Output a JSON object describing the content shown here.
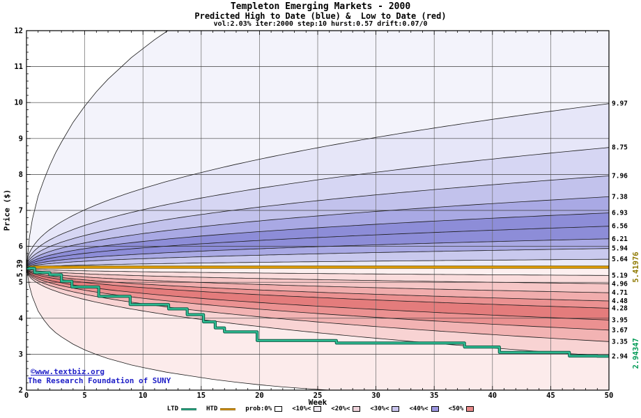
{
  "header": {
    "title": "Templeton Emerging Markets - 2000",
    "subtitle": "Predicted High to Date (blue) &  Low to Date (red)",
    "params": "vol:2.03% iter:2000 step:10 hurst:0.57 drift:0.07/0"
  },
  "watermark": {
    "link": "©www.textbiz.org",
    "org": "The Research Foundation of SUNY",
    "color": "#2121c8"
  },
  "legend": {
    "items": [
      {
        "label": "LTD",
        "type": "line",
        "color": "#2fbf95"
      },
      {
        "label": "HTD",
        "type": "line",
        "color": "#f5a800"
      },
      {
        "label": "prob:0%",
        "type": "box",
        "color": "#ffffff"
      },
      {
        "label": "<10%<",
        "type": "box",
        "color": "#f2ecf3"
      },
      {
        "label": "<20%<",
        "type": "box",
        "color": "#eed3db"
      },
      {
        "label": "<30%<",
        "type": "box",
        "color": "#cac5ee"
      },
      {
        "label": "<40%<",
        "type": "box",
        "color": "#9d97e1"
      },
      {
        "label": "<50%",
        "type": "box",
        "color": "#e98a8a"
      }
    ]
  },
  "chart_data": {
    "type": "area",
    "title": "Templeton Emerging Markets - 2000",
    "subtitle": "Predicted High to Date (blue) &  Low to Date (red)",
    "params_line": "vol:2.03% iter:2000 step:10 hurst:0.57 drift:0.07/0",
    "xlabel": "Week",
    "ylabel": "Price ($)",
    "xlim": [
      0,
      50
    ],
    "ylim": [
      2,
      12
    ],
    "xticks": [
      0,
      5,
      10,
      15,
      20,
      25,
      30,
      35,
      40,
      45,
      50
    ],
    "yticks": [
      2,
      3,
      4,
      5,
      6,
      7,
      8,
      9,
      10,
      11,
      12
    ],
    "grid": true,
    "legend_position": "bottom",
    "start_price": 5.39,
    "start_label": "5.39",
    "curve_exponent": 0.45,
    "high_percentile_ends": [
      9.97,
      8.75,
      7.96,
      7.38,
      6.93,
      6.56,
      6.21,
      5.94,
      5.64
    ],
    "low_percentile_ends": [
      5.19,
      4.96,
      4.71,
      4.48,
      4.28,
      3.95,
      3.67,
      3.35,
      2.94
    ],
    "band_colors_high": [
      "#f3f3fb",
      "#e6e6f8",
      "#d6d6f3",
      "#c2c2ec",
      "#a9a9e4",
      "#8d8dd8",
      "#8d8dd8",
      "#a9a9e4",
      "#c9c9ee",
      "#eaeaf9"
    ],
    "band_colors_low": [
      "#fdf0f0",
      "#fadcdc",
      "#f6c6c6",
      "#f1adad",
      "#eb9191",
      "#e47c7c",
      "#eb9191",
      "#f2b3b3",
      "#f8d3d3",
      "#fcebeb"
    ],
    "upper_envelope_points": [
      [
        0,
        5.39
      ],
      [
        0.25,
        6.25
      ],
      [
        0.5,
        6.75
      ],
      [
        1,
        7.4
      ],
      [
        1.5,
        7.85
      ],
      [
        2,
        8.25
      ],
      [
        2.5,
        8.6
      ],
      [
        3,
        8.9
      ],
      [
        4,
        9.45
      ],
      [
        5,
        9.9
      ],
      [
        6,
        10.3
      ],
      [
        7,
        10.65
      ],
      [
        8,
        10.95
      ],
      [
        9,
        11.25
      ],
      [
        10,
        11.5
      ],
      [
        11,
        11.75
      ],
      [
        12,
        11.97
      ],
      [
        13,
        12.18
      ],
      [
        14,
        12.4
      ],
      [
        16,
        12.75
      ],
      [
        20,
        13.3
      ],
      [
        25,
        13.85
      ],
      [
        30,
        14.3
      ],
      [
        35,
        14.7
      ],
      [
        40,
        15.0
      ],
      [
        45,
        15.3
      ],
      [
        50,
        15.6
      ]
    ],
    "lower_envelope_points": [
      [
        0,
        5.39
      ],
      [
        0.25,
        4.9
      ],
      [
        0.5,
        4.6
      ],
      [
        1,
        4.2
      ],
      [
        1.5,
        3.95
      ],
      [
        2,
        3.75
      ],
      [
        2.5,
        3.6
      ],
      [
        3,
        3.48
      ],
      [
        4,
        3.28
      ],
      [
        5,
        3.12
      ],
      [
        6,
        2.99
      ],
      [
        7,
        2.88
      ],
      [
        8,
        2.79
      ],
      [
        9,
        2.7
      ],
      [
        10,
        2.63
      ],
      [
        12,
        2.5
      ],
      [
        14,
        2.4
      ],
      [
        16,
        2.3
      ],
      [
        18,
        2.22
      ],
      [
        20,
        2.15
      ],
      [
        22,
        2.09
      ],
      [
        24,
        2.04
      ],
      [
        26,
        2.0
      ],
      [
        28,
        1.96
      ],
      [
        30,
        1.93
      ],
      [
        35,
        1.86
      ],
      [
        40,
        1.81
      ],
      [
        45,
        1.77
      ],
      [
        50,
        1.73
      ]
    ],
    "htd": {
      "label": "HTD",
      "final_value": "5.41976",
      "color": "#f5a800",
      "edge_color": "#6e5600",
      "label_color": "#8f7900",
      "points": [
        [
          0,
          5.39
        ],
        [
          0.4,
          5.42
        ],
        [
          50,
          5.42
        ]
      ]
    },
    "ltd": {
      "label": "LTD",
      "final_value": "2.94347",
      "color": "#2fbf95",
      "edge_color": "#0c5a44",
      "label_color": "#009a55",
      "steps": [
        [
          0,
          5.39
        ],
        [
          0.7,
          5.39
        ],
        [
          0.7,
          5.27
        ],
        [
          2,
          5.27
        ],
        [
          2,
          5.21
        ],
        [
          3,
          5.21
        ],
        [
          3,
          5.03
        ],
        [
          3.9,
          5.03
        ],
        [
          3.9,
          4.87
        ],
        [
          6.2,
          4.87
        ],
        [
          6.2,
          4.61
        ],
        [
          8.9,
          4.61
        ],
        [
          8.9,
          4.38
        ],
        [
          12.2,
          4.38
        ],
        [
          12.2,
          4.26
        ],
        [
          13.8,
          4.26
        ],
        [
          13.8,
          4.1
        ],
        [
          15.2,
          4.1
        ],
        [
          15.2,
          3.9
        ],
        [
          16.2,
          3.9
        ],
        [
          16.2,
          3.73
        ],
        [
          17,
          3.73
        ],
        [
          17,
          3.62
        ],
        [
          19.8,
          3.62
        ],
        [
          19.8,
          3.38
        ],
        [
          26.6,
          3.38
        ],
        [
          26.6,
          3.31
        ],
        [
          37.6,
          3.31
        ],
        [
          37.6,
          3.2
        ],
        [
          40.6,
          3.2
        ],
        [
          40.6,
          3.05
        ],
        [
          46.6,
          3.05
        ],
        [
          46.6,
          2.95
        ],
        [
          49,
          2.95
        ],
        [
          49,
          2.943
        ],
        [
          50,
          2.943
        ]
      ]
    }
  }
}
